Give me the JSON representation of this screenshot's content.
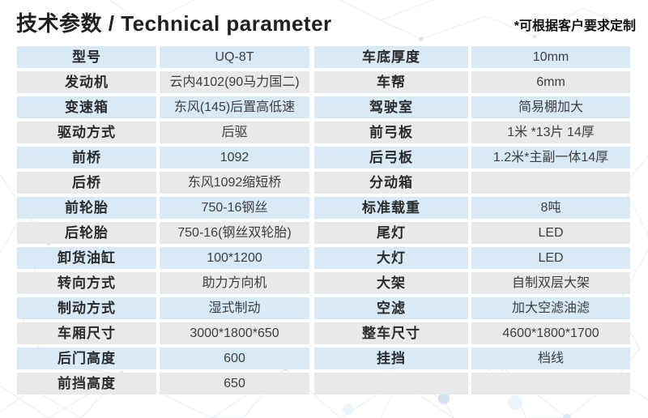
{
  "header": {
    "title_cn": "技术参数",
    "title_sep": " / ",
    "title_en": "Technical parameter",
    "note": "*可根据客户要求定制"
  },
  "colors": {
    "row_blue": "#d8e9f7",
    "row_gray": "#e9e9e9",
    "label_text": "#2a2a2a",
    "value_text": "#3d3d3d"
  },
  "table_left": {
    "rows": [
      {
        "label": "型号",
        "value": "UQ-8T"
      },
      {
        "label": "发动机",
        "value": "云内4102(90马力国二)"
      },
      {
        "label": "变速箱",
        "value": "东风(145)后置高低速"
      },
      {
        "label": "驱动方式",
        "value": "后驱"
      },
      {
        "label": "前桥",
        "value": "1092"
      },
      {
        "label": "后桥",
        "value": "东风1092缩短桥"
      },
      {
        "label": "前轮胎",
        "value": "750-16钢丝"
      },
      {
        "label": "后轮胎",
        "value": "750-16(钢丝双轮胎)"
      },
      {
        "label": "卸货油缸",
        "value": "100*1200"
      },
      {
        "label": "转向方式",
        "value": "助力方向机"
      },
      {
        "label": "制动方式",
        "value": "湿式制动"
      },
      {
        "label": "车厢尺寸",
        "value": "3000*1800*650"
      },
      {
        "label": "后门高度",
        "value": "600"
      },
      {
        "label": "前挡高度",
        "value": "650"
      }
    ]
  },
  "table_right": {
    "rows": [
      {
        "label": "车底厚度",
        "value": "10mm"
      },
      {
        "label": "车帮",
        "value": "6mm"
      },
      {
        "label": "驾驶室",
        "value": "简易棚加大"
      },
      {
        "label": "前弓板",
        "value": "1米 *13片 14厚"
      },
      {
        "label": "后弓板",
        "value": "1.2米*主副一体14厚"
      },
      {
        "label": "分动箱",
        "value": ""
      },
      {
        "label": "标准载重",
        "value": "8吨"
      },
      {
        "label": "尾灯",
        "value": "LED"
      },
      {
        "label": "大灯",
        "value": "LED"
      },
      {
        "label": "大架",
        "value": "自制双层大架"
      },
      {
        "label": "空滤",
        "value": "加大空滤油滤"
      },
      {
        "label": "整车尺寸",
        "value": "4600*1800*1700"
      },
      {
        "label": "挂挡",
        "value": "档线"
      },
      {
        "label": "",
        "value": ""
      }
    ]
  }
}
